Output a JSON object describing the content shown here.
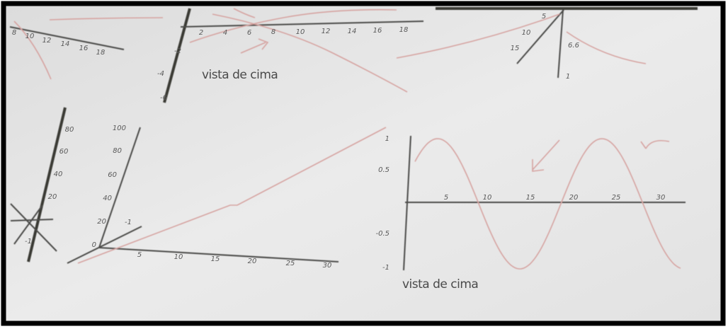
{
  "panels": [
    {
      "ticks": [
        "8",
        "10",
        "12",
        "14",
        "16",
        "18"
      ]
    },
    {
      "x_ticks": [
        "2",
        "4",
        "6",
        "8",
        "10",
        "12",
        "14",
        "16",
        "18"
      ],
      "y_ticks": [
        "-2",
        "-4",
        "-6"
      ],
      "caption": "vista de cima"
    },
    {
      "ticks": [
        "5",
        "10",
        "15",
        "6.6",
        "1"
      ]
    },
    {
      "ticks": [
        "80",
        "60",
        "40",
        "20",
        "-1"
      ]
    },
    {
      "x_ticks": [
        "5",
        "10",
        "15",
        "20",
        "25",
        "30"
      ],
      "y_ticks": [
        "100",
        "80",
        "60",
        "40",
        "20",
        "0",
        "-1"
      ]
    },
    {
      "x_ticks": [
        "5",
        "10",
        "15",
        "20",
        "25",
        "30"
      ],
      "y_ticks": [
        "1",
        "0.5",
        "-0.5",
        "-1"
      ],
      "caption": "vista de cima"
    }
  ]
}
